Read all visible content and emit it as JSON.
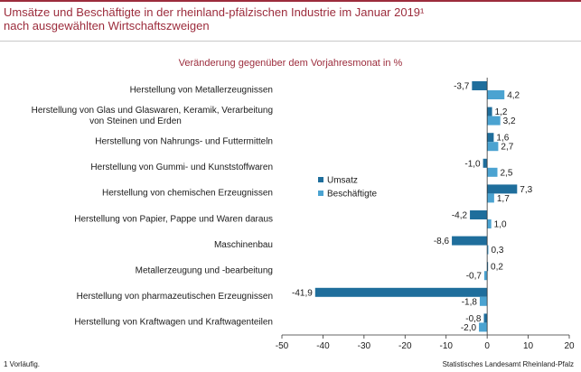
{
  "header": {
    "title_line1": "Umsätze und Beschäftigte in der rheinland-pfälzischen Industrie im Januar 2019¹",
    "title_line2": "nach ausgewählten Wirtschaftszweigen"
  },
  "footer": {
    "note": "1 Vorläufig.",
    "source": "Statistisches Landesamt Rheinland-Pfalz"
  },
  "colors": {
    "umsatz": "#1f6e9c",
    "beschaeftigte": "#4ba3d1",
    "title": "#9c2c3c"
  },
  "chart_data": {
    "type": "bar",
    "orientation": "horizontal",
    "title": "Veränderung gegenüber dem Vorjahresmonat in %",
    "xlim": [
      -50,
      20
    ],
    "xticks": [
      -50,
      -40,
      -30,
      -20,
      -10,
      0,
      10,
      20
    ],
    "legend_position": "middle-right",
    "grid": false,
    "categories": [
      "Herstellung von Metallerzeugnissen",
      "Herstellung von Glas und Glaswaren, Keramik, Verarbeitung von Steinen und Erden",
      "Herstellung von Nahrungs- und Futtermitteln",
      "Herstellung von Gummi- und Kunststoffwaren",
      "Herstellung von chemischen Erzeugnissen",
      "Herstellung von Papier, Pappe und Waren daraus",
      "Maschinenbau",
      "Metallerzeugung und -bearbeitung",
      "Herstellung von pharmazeutischen Erzeugnissen",
      "Herstellung von Kraftwagen und Kraftwagenteilen"
    ],
    "category_lines": [
      [
        "Herstellung von Metallerzeugnissen"
      ],
      [
        "Herstellung von Glas und Glaswaren, Keramik, Verarbeitung",
        "von Steinen und Erden"
      ],
      [
        "Herstellung von Nahrungs- und Futtermitteln"
      ],
      [
        "Herstellung von Gummi- und Kunststoffwaren"
      ],
      [
        "Herstellung von chemischen Erzeugnissen"
      ],
      [
        "Herstellung von Papier, Pappe und Waren daraus"
      ],
      [
        "Maschinenbau"
      ],
      [
        "Metallerzeugung und -bearbeitung"
      ],
      [
        "Herstellung von pharmazeutischen Erzeugnissen"
      ],
      [
        "Herstellung von Kraftwagen und Kraftwagenteilen"
      ]
    ],
    "series": [
      {
        "name": "Umsatz",
        "values": [
          -3.7,
          1.2,
          1.6,
          -1.0,
          7.3,
          -4.2,
          -8.6,
          0.2,
          -41.9,
          -0.8
        ],
        "labels": [
          "-3,7",
          "1,2",
          "1,6",
          "-1,0",
          "7,3",
          "-4,2",
          "-8,6",
          "0,2",
          "-41,9",
          "-0,8"
        ]
      },
      {
        "name": "Beschäftigte",
        "values": [
          4.2,
          3.2,
          2.7,
          2.5,
          1.7,
          1.0,
          0.3,
          -0.7,
          -1.8,
          -2.0
        ],
        "labels": [
          "4,2",
          "3,2",
          "2,7",
          "2,5",
          "1,7",
          "1,0",
          "0,3",
          "-0,7",
          "-1,8",
          "-2,0"
        ]
      }
    ]
  }
}
